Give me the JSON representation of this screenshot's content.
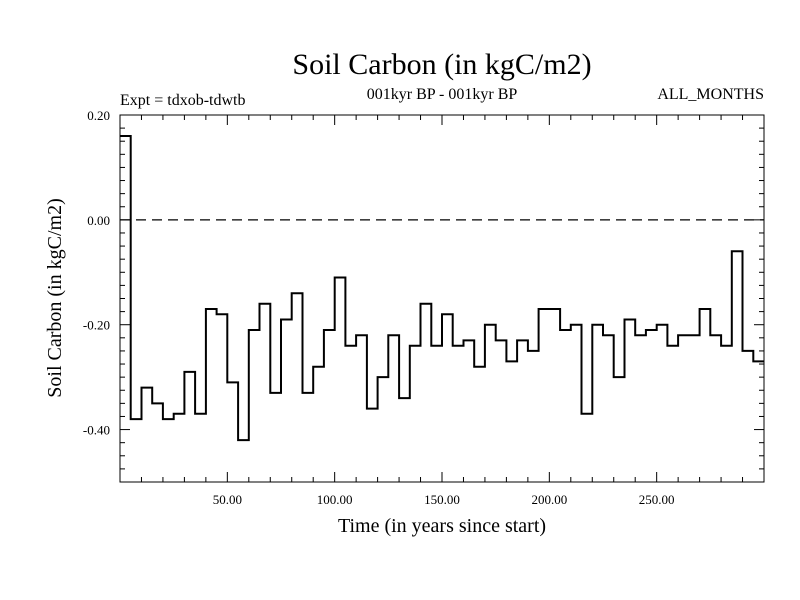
{
  "chart_data": {
    "type": "line",
    "step": true,
    "title": "Soil Carbon (in kgC/m2)",
    "experiment_label": "Expt = tdxob-tdwtb",
    "period_label": "001kyr BP - 001kyr BP",
    "months_label": "ALL_MONTHS",
    "xlabel": "Time (in years since start)",
    "ylabel": "Soil Carbon (in kgC/m2)",
    "xlim": [
      0,
      300
    ],
    "ylim": [
      -0.5,
      0.2
    ],
    "x_ticks": [
      50,
      100,
      150,
      200,
      250
    ],
    "x_tick_labels": [
      "50.00",
      "100.00",
      "150.00",
      "200.00",
      "250.00"
    ],
    "y_ticks": [
      0.2,
      0.0,
      -0.2,
      -0.4
    ],
    "y_tick_labels": [
      "0.20",
      "0.00",
      "-0.20",
      "-0.40"
    ],
    "reference_line": {
      "y": 0.0,
      "style": "dashed"
    },
    "grid": false,
    "color": "#000000",
    "series": [
      {
        "x_start": 0,
        "x_step": 5,
        "values": [
          0.16,
          -0.38,
          -0.32,
          -0.35,
          -0.38,
          -0.37,
          -0.29,
          -0.37,
          -0.17,
          -0.18,
          -0.31,
          -0.42,
          -0.21,
          -0.16,
          -0.33,
          -0.19,
          -0.14,
          -0.33,
          -0.28,
          -0.21,
          -0.11,
          -0.24,
          -0.22,
          -0.36,
          -0.3,
          -0.22,
          -0.34,
          -0.24,
          -0.16,
          -0.24,
          -0.18,
          -0.24,
          -0.23,
          -0.28,
          -0.2,
          -0.23,
          -0.27,
          -0.23,
          -0.25,
          -0.17,
          -0.17,
          -0.21,
          -0.2,
          -0.37,
          -0.2,
          -0.22,
          -0.3,
          -0.19,
          -0.22,
          -0.21,
          -0.2,
          -0.24,
          -0.22,
          -0.22,
          -0.17,
          -0.22,
          -0.24,
          -0.06,
          -0.25,
          -0.27
        ]
      }
    ]
  }
}
